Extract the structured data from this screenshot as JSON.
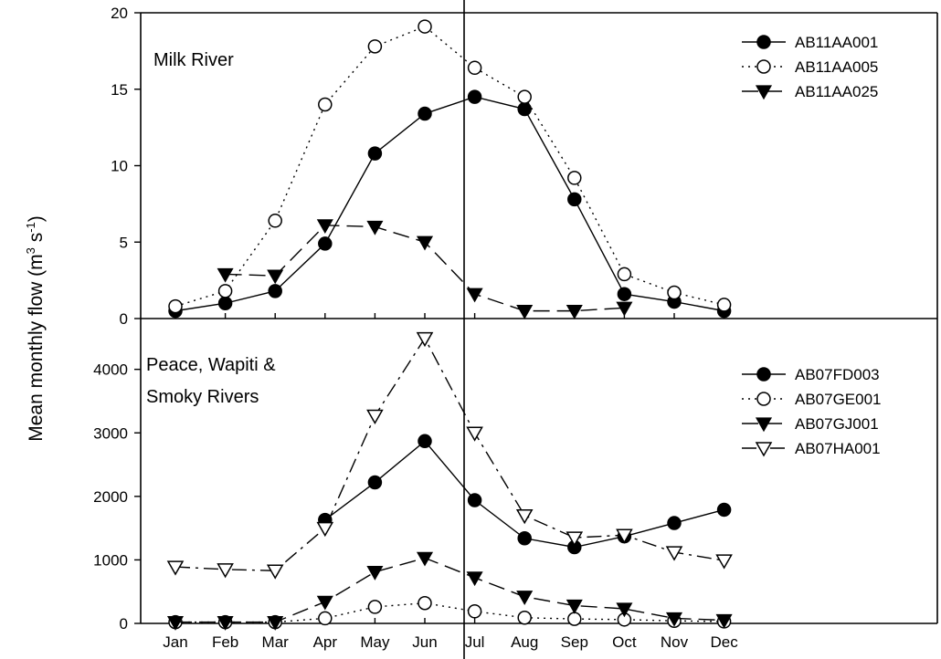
{
  "chart_data": {
    "type": "line",
    "ylabel": "Mean monthly flow (m",
    "ylabel_sup1": "3",
    "ylabel_mid": " s",
    "ylabel_sup2": "-1",
    "ylabel_end": ")",
    "categories": [
      "Jan",
      "Feb",
      "Mar",
      "Apr",
      "May",
      "Jun",
      "Jul",
      "Aug",
      "Sep",
      "Oct",
      "Nov",
      "Dec"
    ],
    "panels": [
      {
        "title_lines": [
          "Milk River"
        ],
        "ylim": [
          0,
          20
        ],
        "yticks": [
          "0",
          "5",
          "10",
          "15",
          "20"
        ],
        "series": [
          {
            "name": "AB11AA001",
            "marker": "filled-circle",
            "line": "solid",
            "values": [
              0.5,
              1.0,
              1.8,
              4.9,
              10.8,
              13.4,
              14.5,
              13.7,
              7.8,
              1.6,
              1.1,
              0.5
            ]
          },
          {
            "name": "AB11AA005",
            "marker": "open-circle",
            "line": "dotted",
            "values": [
              0.8,
              1.8,
              6.4,
              14.0,
              17.8,
              19.1,
              16.4,
              14.5,
              9.2,
              2.9,
              1.7,
              0.9
            ]
          },
          {
            "name": "AB11AA025",
            "marker": "filled-triangle-down",
            "line": "dashed",
            "values": [
              null,
              2.9,
              2.8,
              6.1,
              6.0,
              5.0,
              1.6,
              0.5,
              0.5,
              0.7,
              null,
              null
            ]
          }
        ]
      },
      {
        "title_lines": [
          "Peace, Wapiti &",
          "Smoky Rivers"
        ],
        "ylim": [
          0,
          4800
        ],
        "yticks": [
          "0",
          "1000",
          "2000",
          "3000",
          "4000"
        ],
        "series": [
          {
            "name": "AB07FD003",
            "marker": "filled-circle",
            "line": "solid",
            "values": [
              null,
              null,
              null,
              1630,
              2220,
              2870,
              1940,
              1340,
              1200,
              1370,
              1580,
              1790
            ]
          },
          {
            "name": "AB07GE001",
            "marker": "open-circle",
            "line": "dotted",
            "values": [
              20,
              20,
              20,
              80,
              260,
              320,
              190,
              90,
              70,
              60,
              40,
              30
            ]
          },
          {
            "name": "AB07GJ001",
            "marker": "filled-triangle-down",
            "line": "dashed",
            "values": [
              20,
              20,
              20,
              340,
              810,
              1030,
              720,
              420,
              280,
              230,
              80,
              50
            ]
          },
          {
            "name": "AB07HA001",
            "marker": "open-triangle-down",
            "line": "dashdot",
            "values": [
              890,
              850,
              830,
              1500,
              3270,
              4490,
              3000,
              1700,
              1350,
              1390,
              1120,
              990
            ]
          }
        ]
      }
    ]
  }
}
